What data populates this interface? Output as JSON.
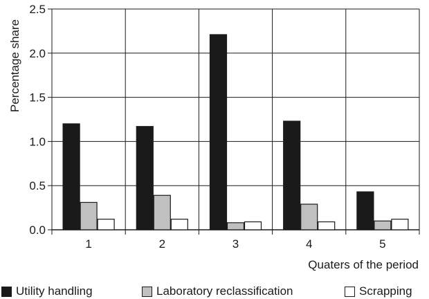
{
  "chart_data": {
    "type": "bar",
    "categories": [
      "1",
      "2",
      "3",
      "4",
      "5"
    ],
    "series": [
      {
        "name": "Utility handling",
        "color": "#1a1a1a",
        "values": [
          1.2,
          1.17,
          2.21,
          1.23,
          0.43
        ]
      },
      {
        "name": "Laboratory reclassification",
        "color": "#c0c0c0",
        "values": [
          0.31,
          0.39,
          0.08,
          0.29,
          0.1
        ]
      },
      {
        "name": "Scrapping",
        "color": "#ffffff",
        "values": [
          0.12,
          0.12,
          0.09,
          0.09,
          0.12
        ]
      }
    ],
    "xlabel": "Quaters of the period",
    "ylabel": "Percentage share",
    "ylim": [
      0,
      2.5
    ],
    "yticks": [
      "0.0",
      "0.5",
      "1.0",
      "1.5",
      "2.0",
      "2.5"
    ],
    "grid": "horizontal and category separators",
    "legend_position": "bottom"
  }
}
